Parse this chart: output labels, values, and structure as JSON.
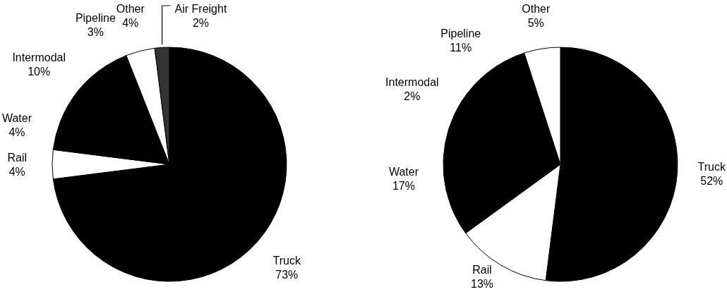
{
  "chart_data": [
    {
      "type": "pie",
      "categories": [
        "Truck",
        "Rail",
        "Water",
        "Intermodal",
        "Pipeline",
        "Other",
        "Air Freight"
      ],
      "values": [
        73,
        4,
        4,
        10,
        3,
        4,
        2
      ],
      "colors": [
        "#000000",
        "#ffffff",
        "#000000",
        "#000000",
        "#000000",
        "#ffffff",
        "#333333"
      ],
      "value_labels": [
        "73%",
        "4%",
        "4%",
        "10%",
        "3%",
        "4%",
        "2%"
      ]
    },
    {
      "type": "pie",
      "categories": [
        "Truck",
        "Rail",
        "Water",
        "Intermodal",
        "Pipeline",
        "Other"
      ],
      "values": [
        52,
        13,
        17,
        2,
        11,
        5
      ],
      "colors": [
        "#000000",
        "#ffffff",
        "#000000",
        "#000000",
        "#000000",
        "#ffffff"
      ],
      "value_labels": [
        "52%",
        "13%",
        "17%",
        "2%",
        "11%",
        "5%"
      ]
    }
  ]
}
